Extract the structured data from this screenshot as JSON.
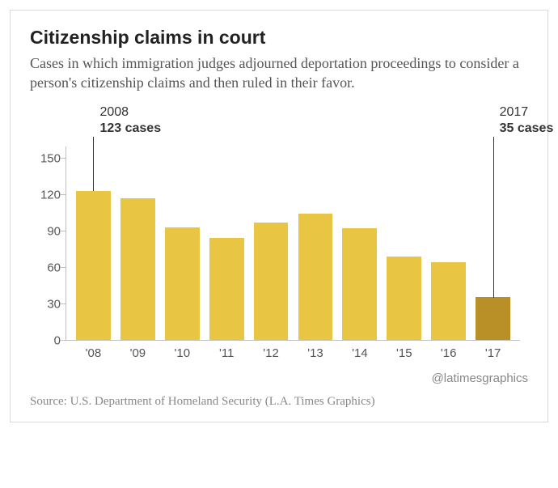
{
  "title": "Citizenship claims in court",
  "subtitle": "Cases in which immigration judges adjourned deportation proceedings to consider a person's citizenship claims and then ruled in their favor.",
  "chart": {
    "type": "bar",
    "ymax": 160,
    "yticks": [
      0,
      30,
      60,
      90,
      120,
      150
    ],
    "categories": [
      "'08",
      "'09",
      "'10",
      "'11",
      "'12",
      "'13",
      "'14",
      "'15",
      "'16",
      "'17"
    ],
    "values": [
      123,
      117,
      93,
      84,
      97,
      104,
      92,
      69,
      64,
      35
    ],
    "bar_color": "#e8c643",
    "highlight_index": 9,
    "highlight_color": "#b98f27",
    "axis_color": "#bfbfbf",
    "label_color": "#555555",
    "callouts": [
      {
        "index": 0,
        "year": "2008",
        "cases": "123 cases"
      },
      {
        "index": 9,
        "year": "2017",
        "cases": "35 cases"
      }
    ]
  },
  "credit": "@latimesgraphics",
  "source": "Source: U.S. Department of Homeland Security (L.A. Times Graphics)"
}
